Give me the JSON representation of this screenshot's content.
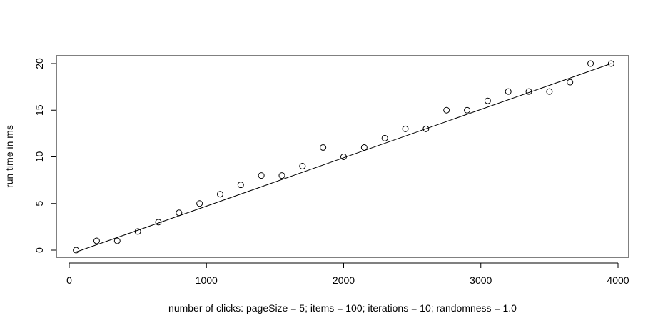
{
  "chart_data": {
    "type": "scatter",
    "title": "",
    "xlabel": "number of clicks: pageSize = 5; items = 100; iterations = 10; randomness = 1.0",
    "ylabel": "run time in ms",
    "xlim": [
      0,
      4000
    ],
    "ylim": [
      0,
      20
    ],
    "x_ticks": [
      0,
      1000,
      2000,
      3000,
      4000
    ],
    "y_ticks": [
      0,
      5,
      10,
      15,
      20
    ],
    "grid": false,
    "legend": "none",
    "points": [
      {
        "x": 50,
        "y": 0
      },
      {
        "x": 200,
        "y": 1
      },
      {
        "x": 350,
        "y": 1
      },
      {
        "x": 500,
        "y": 2
      },
      {
        "x": 650,
        "y": 3
      },
      {
        "x": 800,
        "y": 4
      },
      {
        "x": 950,
        "y": 5
      },
      {
        "x": 1100,
        "y": 6
      },
      {
        "x": 1250,
        "y": 7
      },
      {
        "x": 1400,
        "y": 8
      },
      {
        "x": 1550,
        "y": 8
      },
      {
        "x": 1700,
        "y": 9
      },
      {
        "x": 1850,
        "y": 11
      },
      {
        "x": 2000,
        "y": 10
      },
      {
        "x": 2150,
        "y": 11
      },
      {
        "x": 2300,
        "y": 12
      },
      {
        "x": 2450,
        "y": 13
      },
      {
        "x": 2600,
        "y": 13
      },
      {
        "x": 2750,
        "y": 15
      },
      {
        "x": 2900,
        "y": 15
      },
      {
        "x": 3050,
        "y": 16
      },
      {
        "x": 3200,
        "y": 17
      },
      {
        "x": 3350,
        "y": 17
      },
      {
        "x": 3500,
        "y": 17
      },
      {
        "x": 3650,
        "y": 18
      },
      {
        "x": 3800,
        "y": 20
      },
      {
        "x": 3950,
        "y": 20
      }
    ],
    "fit_line": {
      "x": [
        50,
        3950
      ],
      "y": [
        -0.2,
        20.0
      ]
    },
    "marker_color": "#000000",
    "line_color": "#000000"
  }
}
